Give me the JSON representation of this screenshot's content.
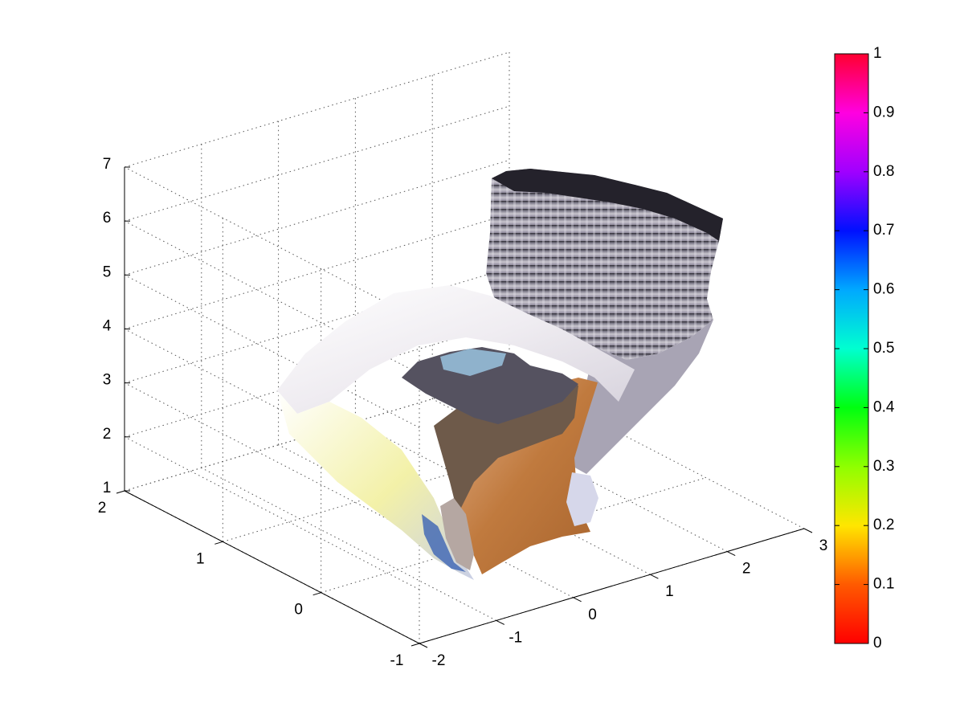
{
  "chart_data": {
    "type": "surface3d",
    "title": "",
    "xlabel": "",
    "ylabel": "",
    "zlabel": "",
    "grid": true,
    "x_axis": {
      "range": [
        -2,
        3
      ],
      "ticks": [
        "-2",
        "-1",
        "0",
        "1",
        "2",
        "3"
      ]
    },
    "y_axis": {
      "range": [
        -1,
        2
      ],
      "ticks": [
        "-1",
        "0",
        "1",
        "2"
      ]
    },
    "z_axis": {
      "range": [
        1,
        7
      ],
      "ticks": [
        "1",
        "2",
        "3",
        "4",
        "5",
        "6",
        "7"
      ]
    },
    "colorbar": {
      "range": [
        0,
        1
      ],
      "ticks": [
        "0",
        "0.1",
        "0.2",
        "0.3",
        "0.4",
        "0.5",
        "0.6",
        "0.7",
        "0.8",
        "0.9",
        "1"
      ],
      "colormap": "hsv",
      "placement": "right"
    },
    "surface": {
      "description_color_shades": [
        "#f4f2f6",
        "#d9d6dc",
        "#a59fb2",
        "#5c5866",
        "#2a2830",
        "#b8733a",
        "#d8b23e",
        "#f6f4a0"
      ]
    }
  }
}
